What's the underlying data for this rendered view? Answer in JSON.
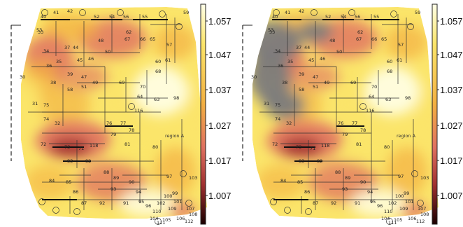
{
  "panels": [
    {
      "name": "left",
      "grey_out_of_range": false,
      "region_label": "region A",
      "colorbar": {
        "ticks": [
          "1.057",
          "1.047",
          "1.037",
          "1.027",
          "1.017",
          "1.007"
        ]
      },
      "bus_labels": [
        "40",
        "41",
        "42",
        "52",
        "54",
        "56",
        "55",
        "59",
        "53",
        "34",
        "37",
        "44",
        "45",
        "46",
        "62",
        "67",
        "66",
        "65",
        "60",
        "61",
        "33",
        "36",
        "35",
        "38",
        "47",
        "49",
        "69",
        "70",
        "68",
        "116",
        "75",
        "74",
        "72",
        "73",
        "71",
        "118",
        "76",
        "77",
        "78",
        "79",
        "81",
        "80",
        "82",
        "83",
        "84",
        "85",
        "86",
        "87",
        "88",
        "89",
        "90",
        "91",
        "92",
        "94",
        "93",
        "95",
        "96",
        "97",
        "99",
        "100",
        "101",
        "102",
        "103",
        "104",
        "105",
        "106",
        "107",
        "108",
        "109",
        "110",
        "111",
        "112",
        "64",
        "63",
        "48",
        "50",
        "51",
        "58",
        "57",
        "98",
        "31",
        "32",
        "30",
        "39"
      ]
    },
    {
      "name": "right",
      "grey_out_of_range": true,
      "region_label": "region A",
      "colorbar": {
        "ticks": [
          "1.057",
          "1.047",
          "1.037",
          "1.027",
          "1.017",
          "1.007"
        ]
      },
      "bus_labels": [
        "40",
        "41",
        "42",
        "52",
        "54",
        "56",
        "55",
        "59",
        "53",
        "34",
        "37",
        "44",
        "45",
        "46",
        "62",
        "67",
        "66",
        "65",
        "60",
        "61",
        "33",
        "36",
        "35",
        "38",
        "47",
        "49",
        "69",
        "70",
        "68",
        "116",
        "75",
        "74",
        "72",
        "73",
        "71",
        "118",
        "76",
        "77",
        "78",
        "79",
        "81",
        "80",
        "82",
        "83",
        "84",
        "85",
        "86",
        "87",
        "88",
        "89",
        "90",
        "91",
        "92",
        "94",
        "93",
        "95",
        "96",
        "97",
        "99",
        "100",
        "101",
        "102",
        "103",
        "104",
        "105",
        "106",
        "107",
        "108",
        "109",
        "110",
        "111",
        "112",
        "64",
        "63",
        "48",
        "50",
        "51",
        "58",
        "57",
        "98",
        "31",
        "32",
        "30",
        "39"
      ]
    }
  ],
  "colors": {
    "high": "#ffffe8",
    "mid_high": "#fbe56a",
    "mid": "#f3b041",
    "mid_low": "#e07160",
    "low": "#a03030",
    "lowest": "#1a0000",
    "grey": "#7c7c7c"
  }
}
